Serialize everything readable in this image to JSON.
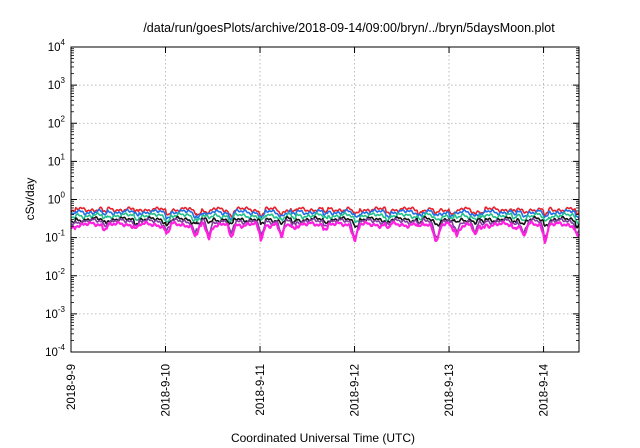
{
  "chart_data": {
    "type": "line",
    "title": "/data/run/goesPlots/archive/2018-09-14/09:00/bryn/../bryn/5daysMoon.plot",
    "xlabel": "Coordinated Universal Time (UTC)",
    "ylabel": "cSv/day",
    "yscale": "log",
    "ylim": [
      0.0001,
      10000
    ],
    "yticks": [
      {
        "value": 0.0001,
        "base": "10",
        "exp": "-4"
      },
      {
        "value": 0.001,
        "base": "10",
        "exp": "-3"
      },
      {
        "value": 0.01,
        "base": "10",
        "exp": "-2"
      },
      {
        "value": 0.1,
        "base": "10",
        "exp": "-1"
      },
      {
        "value": 1,
        "base": "10",
        "exp": "0"
      },
      {
        "value": 10,
        "base": "10",
        "exp": "1"
      },
      {
        "value": 100,
        "base": "10",
        "exp": "2"
      },
      {
        "value": 1000,
        "base": "10",
        "exp": "3"
      },
      {
        "value": 10000,
        "base": "10",
        "exp": "4"
      }
    ],
    "xlim": [
      "2018-09-09T00:00",
      "2018-09-14T09:00"
    ],
    "xticks": [
      "2018-9-9",
      "2018-9-10",
      "2018-9-11",
      "2018-9-12",
      "2018-9-13",
      "2018-9-14"
    ],
    "grid": true,
    "series": [
      {
        "color": "#e8202a",
        "base": 0.55
      },
      {
        "color": "#1f6fe8",
        "base": 0.47
      },
      {
        "color": "#22c08a",
        "base": 0.38
      },
      {
        "color": "#111111",
        "base": 0.3
      },
      {
        "color": "#8040a0",
        "base": 0.27
      },
      {
        "color": "#ff20e0",
        "base": 0.22
      }
    ],
    "dips": [
      {
        "t": "2018-09-10T00:10",
        "depth": 0.38
      },
      {
        "t": "2018-09-10T07:30",
        "depth": 0.55
      },
      {
        "t": "2018-09-10T11:00",
        "depth": 0.6
      },
      {
        "t": "2018-09-10T16:40",
        "depth": 0.5
      },
      {
        "t": "2018-09-11T00:10",
        "depth": 0.55
      },
      {
        "t": "2018-09-11T05:30",
        "depth": 0.6
      },
      {
        "t": "2018-09-12T00:00",
        "depth": 0.6
      },
      {
        "t": "2018-09-12T20:30",
        "depth": 0.45
      },
      {
        "t": "2018-09-12T21:10",
        "depth": 0.45
      },
      {
        "t": "2018-09-13T02:00",
        "depth": 0.5
      },
      {
        "t": "2018-09-13T06:40",
        "depth": 0.55
      },
      {
        "t": "2018-09-13T19:00",
        "depth": 0.55
      },
      {
        "t": "2018-09-14T00:20",
        "depth": 0.55
      },
      {
        "t": "2018-09-14T08:40",
        "depth": 0.45
      }
    ]
  }
}
